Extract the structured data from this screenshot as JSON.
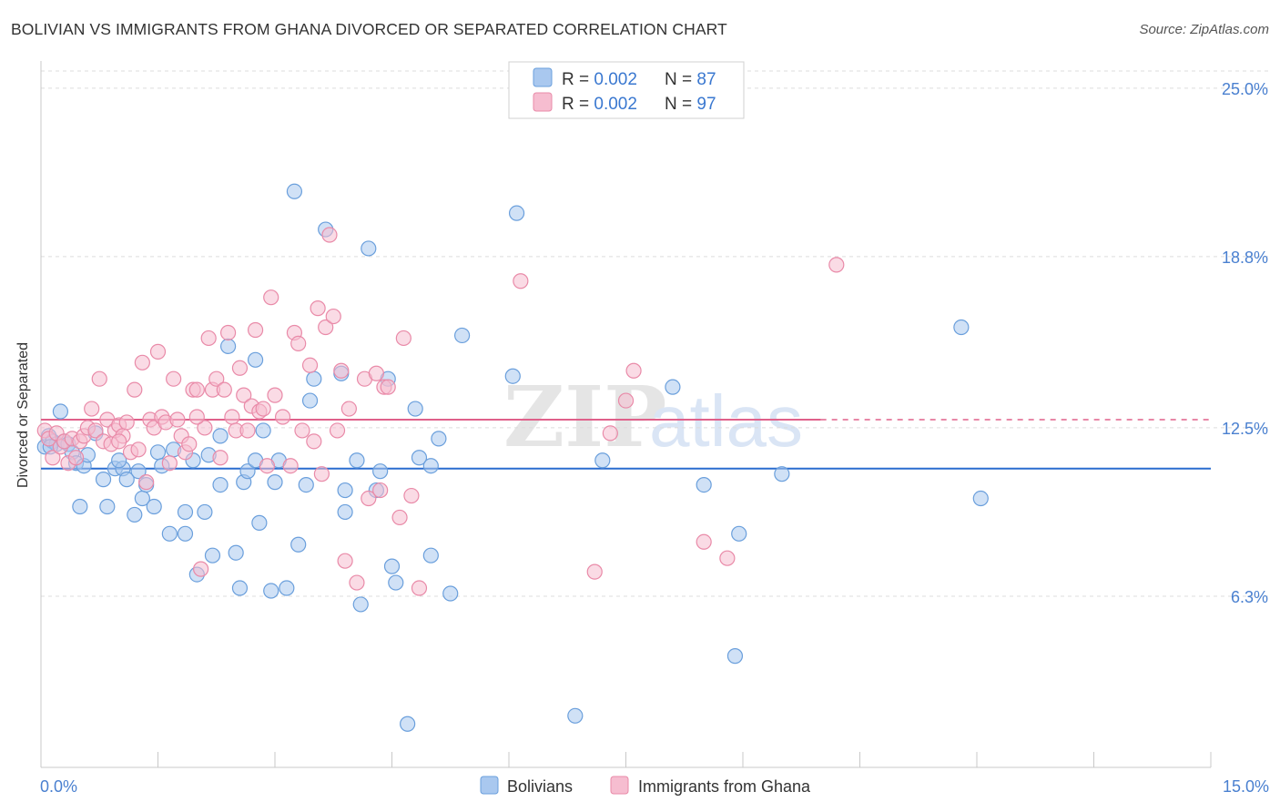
{
  "header": {
    "title": "BOLIVIAN VS IMMIGRANTS FROM GHANA DIVORCED OR SEPARATED CORRELATION CHART",
    "source": "Source: ZipAtlas.com"
  },
  "watermark": {
    "zip": "ZIP",
    "atlas": "atlas"
  },
  "colors": {
    "blue_fill": "#a9c8ef",
    "blue_stroke": "#6a9fdc",
    "blue_line": "#2a6ccf",
    "pink_fill": "#f6bdd0",
    "pink_stroke": "#e98aa8",
    "pink_line": "#e0608a",
    "tick_label": "#4a80d0",
    "grid": "#dcdcdc"
  },
  "legend": {
    "rows": [
      {
        "r_label": "R = ",
        "r_value": "0.002",
        "n_label": "N = ",
        "n_value": "87",
        "color": "blue"
      },
      {
        "r_label": "R = ",
        "r_value": "0.002",
        "n_label": "N = ",
        "n_value": "97",
        "color": "pink"
      }
    ]
  },
  "bottom_legend": {
    "items": [
      {
        "label": "Bolivians",
        "color": "blue"
      },
      {
        "label": "Immigrants from Ghana",
        "color": "pink"
      }
    ]
  },
  "chart_data": {
    "type": "scatter",
    "title": "BOLIVIAN VS IMMIGRANTS FROM GHANA DIVORCED OR SEPARATED CORRELATION CHART",
    "xlabel": "",
    "ylabel": "Divorced or Separated",
    "xlim": [
      0.0,
      15.0
    ],
    "ylim": [
      0.0,
      25.9
    ],
    "x_tick_labels": [
      "0.0%",
      "15.0%"
    ],
    "y_ticks": [
      6.3,
      12.5,
      18.8,
      25.0
    ],
    "y_tick_labels": [
      "6.3%",
      "12.5%",
      "18.8%",
      "25.0%"
    ],
    "grid": true,
    "legend_position": "top-center",
    "series": [
      {
        "name": "Bolivians",
        "color": "blue",
        "trend": {
          "x": [
            0.0,
            15.0
          ],
          "y": [
            11.0,
            11.0
          ]
        },
        "points": [
          [
            0.05,
            11.8
          ],
          [
            0.1,
            12.2
          ],
          [
            0.15,
            12.0
          ],
          [
            0.2,
            11.9
          ],
          [
            0.25,
            13.1
          ],
          [
            0.3,
            12.0
          ],
          [
            0.35,
            11.9
          ],
          [
            0.4,
            11.6
          ],
          [
            0.45,
            11.2
          ],
          [
            0.5,
            9.6
          ],
          [
            0.55,
            11.1
          ],
          [
            0.7,
            12.3
          ],
          [
            0.8,
            10.6
          ],
          [
            0.85,
            9.6
          ],
          [
            0.95,
            11.0
          ],
          [
            1.05,
            11.0
          ],
          [
            1.1,
            10.6
          ],
          [
            1.2,
            9.3
          ],
          [
            1.25,
            10.9
          ],
          [
            1.3,
            9.9
          ],
          [
            1.35,
            10.4
          ],
          [
            1.45,
            9.6
          ],
          [
            1.5,
            11.6
          ],
          [
            1.55,
            11.1
          ],
          [
            1.65,
            8.6
          ],
          [
            1.7,
            11.7
          ],
          [
            1.85,
            8.6
          ],
          [
            1.85,
            9.4
          ],
          [
            1.95,
            11.3
          ],
          [
            2.0,
            7.1
          ],
          [
            2.1,
            9.4
          ],
          [
            2.15,
            11.5
          ],
          [
            2.2,
            7.8
          ],
          [
            2.3,
            12.2
          ],
          [
            2.3,
            10.4
          ],
          [
            2.4,
            15.5
          ],
          [
            2.5,
            7.9
          ],
          [
            2.6,
            10.5
          ],
          [
            2.55,
            6.6
          ],
          [
            2.65,
            10.9
          ],
          [
            2.75,
            11.3
          ],
          [
            2.75,
            15.0
          ],
          [
            2.8,
            9.0
          ],
          [
            2.85,
            12.4
          ],
          [
            2.95,
            6.5
          ],
          [
            3.05,
            11.3
          ],
          [
            3.15,
            6.6
          ],
          [
            3.25,
            21.2
          ],
          [
            3.3,
            8.2
          ],
          [
            3.4,
            10.4
          ],
          [
            3.45,
            13.5
          ],
          [
            3.5,
            14.3
          ],
          [
            3.65,
            19.8
          ],
          [
            3.85,
            14.5
          ],
          [
            3.9,
            9.4
          ],
          [
            3.9,
            10.2
          ],
          [
            4.05,
            11.3
          ],
          [
            4.1,
            6.0
          ],
          [
            4.2,
            19.1
          ],
          [
            4.3,
            10.2
          ],
          [
            4.35,
            10.9
          ],
          [
            4.45,
            14.3
          ],
          [
            4.5,
            7.4
          ],
          [
            4.55,
            6.8
          ],
          [
            4.7,
            1.6
          ],
          [
            4.85,
            11.4
          ],
          [
            5.0,
            7.8
          ],
          [
            5.0,
            11.1
          ],
          [
            5.1,
            12.1
          ],
          [
            5.25,
            6.4
          ],
          [
            5.4,
            15.9
          ],
          [
            6.05,
            14.4
          ],
          [
            6.1,
            20.4
          ],
          [
            6.85,
            1.9
          ],
          [
            7.2,
            11.3
          ],
          [
            8.1,
            14.0
          ],
          [
            8.5,
            10.4
          ],
          [
            8.9,
            4.1
          ],
          [
            8.95,
            8.6
          ],
          [
            9.5,
            10.8
          ],
          [
            11.8,
            16.2
          ],
          [
            12.05,
            9.9
          ],
          [
            0.12,
            11.8
          ],
          [
            0.6,
            11.5
          ],
          [
            1.0,
            11.3
          ],
          [
            3.0,
            10.5
          ],
          [
            4.8,
            13.2
          ]
        ]
      },
      {
        "name": "Immigrants from Ghana",
        "color": "pink",
        "trend": {
          "x": [
            0.0,
            10.0
          ],
          "y": [
            12.8,
            12.8
          ]
        },
        "trend_dashed": {
          "x": [
            10.0,
            15.0
          ],
          "y": [
            12.8,
            12.8
          ]
        },
        "points": [
          [
            0.05,
            12.4
          ],
          [
            0.1,
            12.1
          ],
          [
            0.15,
            11.4
          ],
          [
            0.2,
            12.3
          ],
          [
            0.25,
            11.8
          ],
          [
            0.3,
            12.0
          ],
          [
            0.35,
            11.2
          ],
          [
            0.4,
            12.1
          ],
          [
            0.45,
            11.4
          ],
          [
            0.5,
            12.0
          ],
          [
            0.55,
            12.2
          ],
          [
            0.6,
            12.5
          ],
          [
            0.65,
            13.2
          ],
          [
            0.7,
            12.4
          ],
          [
            0.75,
            14.3
          ],
          [
            0.8,
            12.0
          ],
          [
            0.85,
            12.8
          ],
          [
            0.9,
            11.9
          ],
          [
            0.95,
            12.4
          ],
          [
            1.0,
            12.6
          ],
          [
            1.05,
            12.2
          ],
          [
            1.1,
            12.7
          ],
          [
            1.15,
            11.6
          ],
          [
            1.2,
            13.9
          ],
          [
            1.25,
            11.7
          ],
          [
            1.3,
            14.9
          ],
          [
            1.35,
            10.5
          ],
          [
            1.4,
            12.8
          ],
          [
            1.45,
            12.5
          ],
          [
            1.5,
            15.3
          ],
          [
            1.55,
            12.9
          ],
          [
            1.6,
            12.7
          ],
          [
            1.65,
            11.2
          ],
          [
            1.7,
            14.3
          ],
          [
            1.75,
            12.8
          ],
          [
            1.8,
            12.2
          ],
          [
            1.85,
            11.6
          ],
          [
            1.9,
            11.9
          ],
          [
            1.95,
            13.9
          ],
          [
            2.0,
            13.9
          ],
          [
            2.05,
            7.3
          ],
          [
            2.1,
            12.5
          ],
          [
            2.15,
            15.8
          ],
          [
            2.2,
            13.9
          ],
          [
            2.25,
            14.3
          ],
          [
            2.3,
            11.4
          ],
          [
            2.35,
            13.9
          ],
          [
            2.4,
            16.0
          ],
          [
            2.45,
            12.9
          ],
          [
            2.5,
            12.4
          ],
          [
            2.55,
            14.7
          ],
          [
            2.6,
            13.7
          ],
          [
            2.65,
            12.4
          ],
          [
            2.7,
            13.3
          ],
          [
            2.75,
            16.1
          ],
          [
            2.8,
            13.1
          ],
          [
            2.85,
            13.2
          ],
          [
            2.9,
            11.1
          ],
          [
            2.95,
            17.3
          ],
          [
            3.0,
            13.7
          ],
          [
            3.1,
            12.9
          ],
          [
            3.2,
            11.1
          ],
          [
            3.25,
            16.0
          ],
          [
            3.3,
            15.6
          ],
          [
            3.35,
            12.4
          ],
          [
            3.45,
            14.8
          ],
          [
            3.5,
            12.0
          ],
          [
            3.55,
            16.9
          ],
          [
            3.6,
            10.8
          ],
          [
            3.65,
            16.2
          ],
          [
            3.7,
            19.6
          ],
          [
            3.75,
            16.6
          ],
          [
            3.8,
            12.4
          ],
          [
            3.85,
            14.6
          ],
          [
            3.9,
            7.6
          ],
          [
            3.95,
            13.2
          ],
          [
            4.05,
            6.8
          ],
          [
            4.15,
            14.3
          ],
          [
            4.2,
            9.9
          ],
          [
            4.3,
            14.5
          ],
          [
            4.35,
            10.2
          ],
          [
            4.4,
            14.0
          ],
          [
            4.45,
            14.0
          ],
          [
            4.6,
            9.2
          ],
          [
            4.65,
            15.8
          ],
          [
            4.75,
            10.0
          ],
          [
            4.85,
            6.6
          ],
          [
            6.15,
            17.9
          ],
          [
            7.1,
            7.2
          ],
          [
            7.3,
            12.3
          ],
          [
            7.5,
            13.5
          ],
          [
            7.6,
            14.6
          ],
          [
            8.5,
            8.3
          ],
          [
            8.8,
            7.7
          ],
          [
            10.2,
            18.5
          ],
          [
            1.0,
            12.0
          ],
          [
            2.0,
            12.9
          ]
        ]
      }
    ]
  }
}
